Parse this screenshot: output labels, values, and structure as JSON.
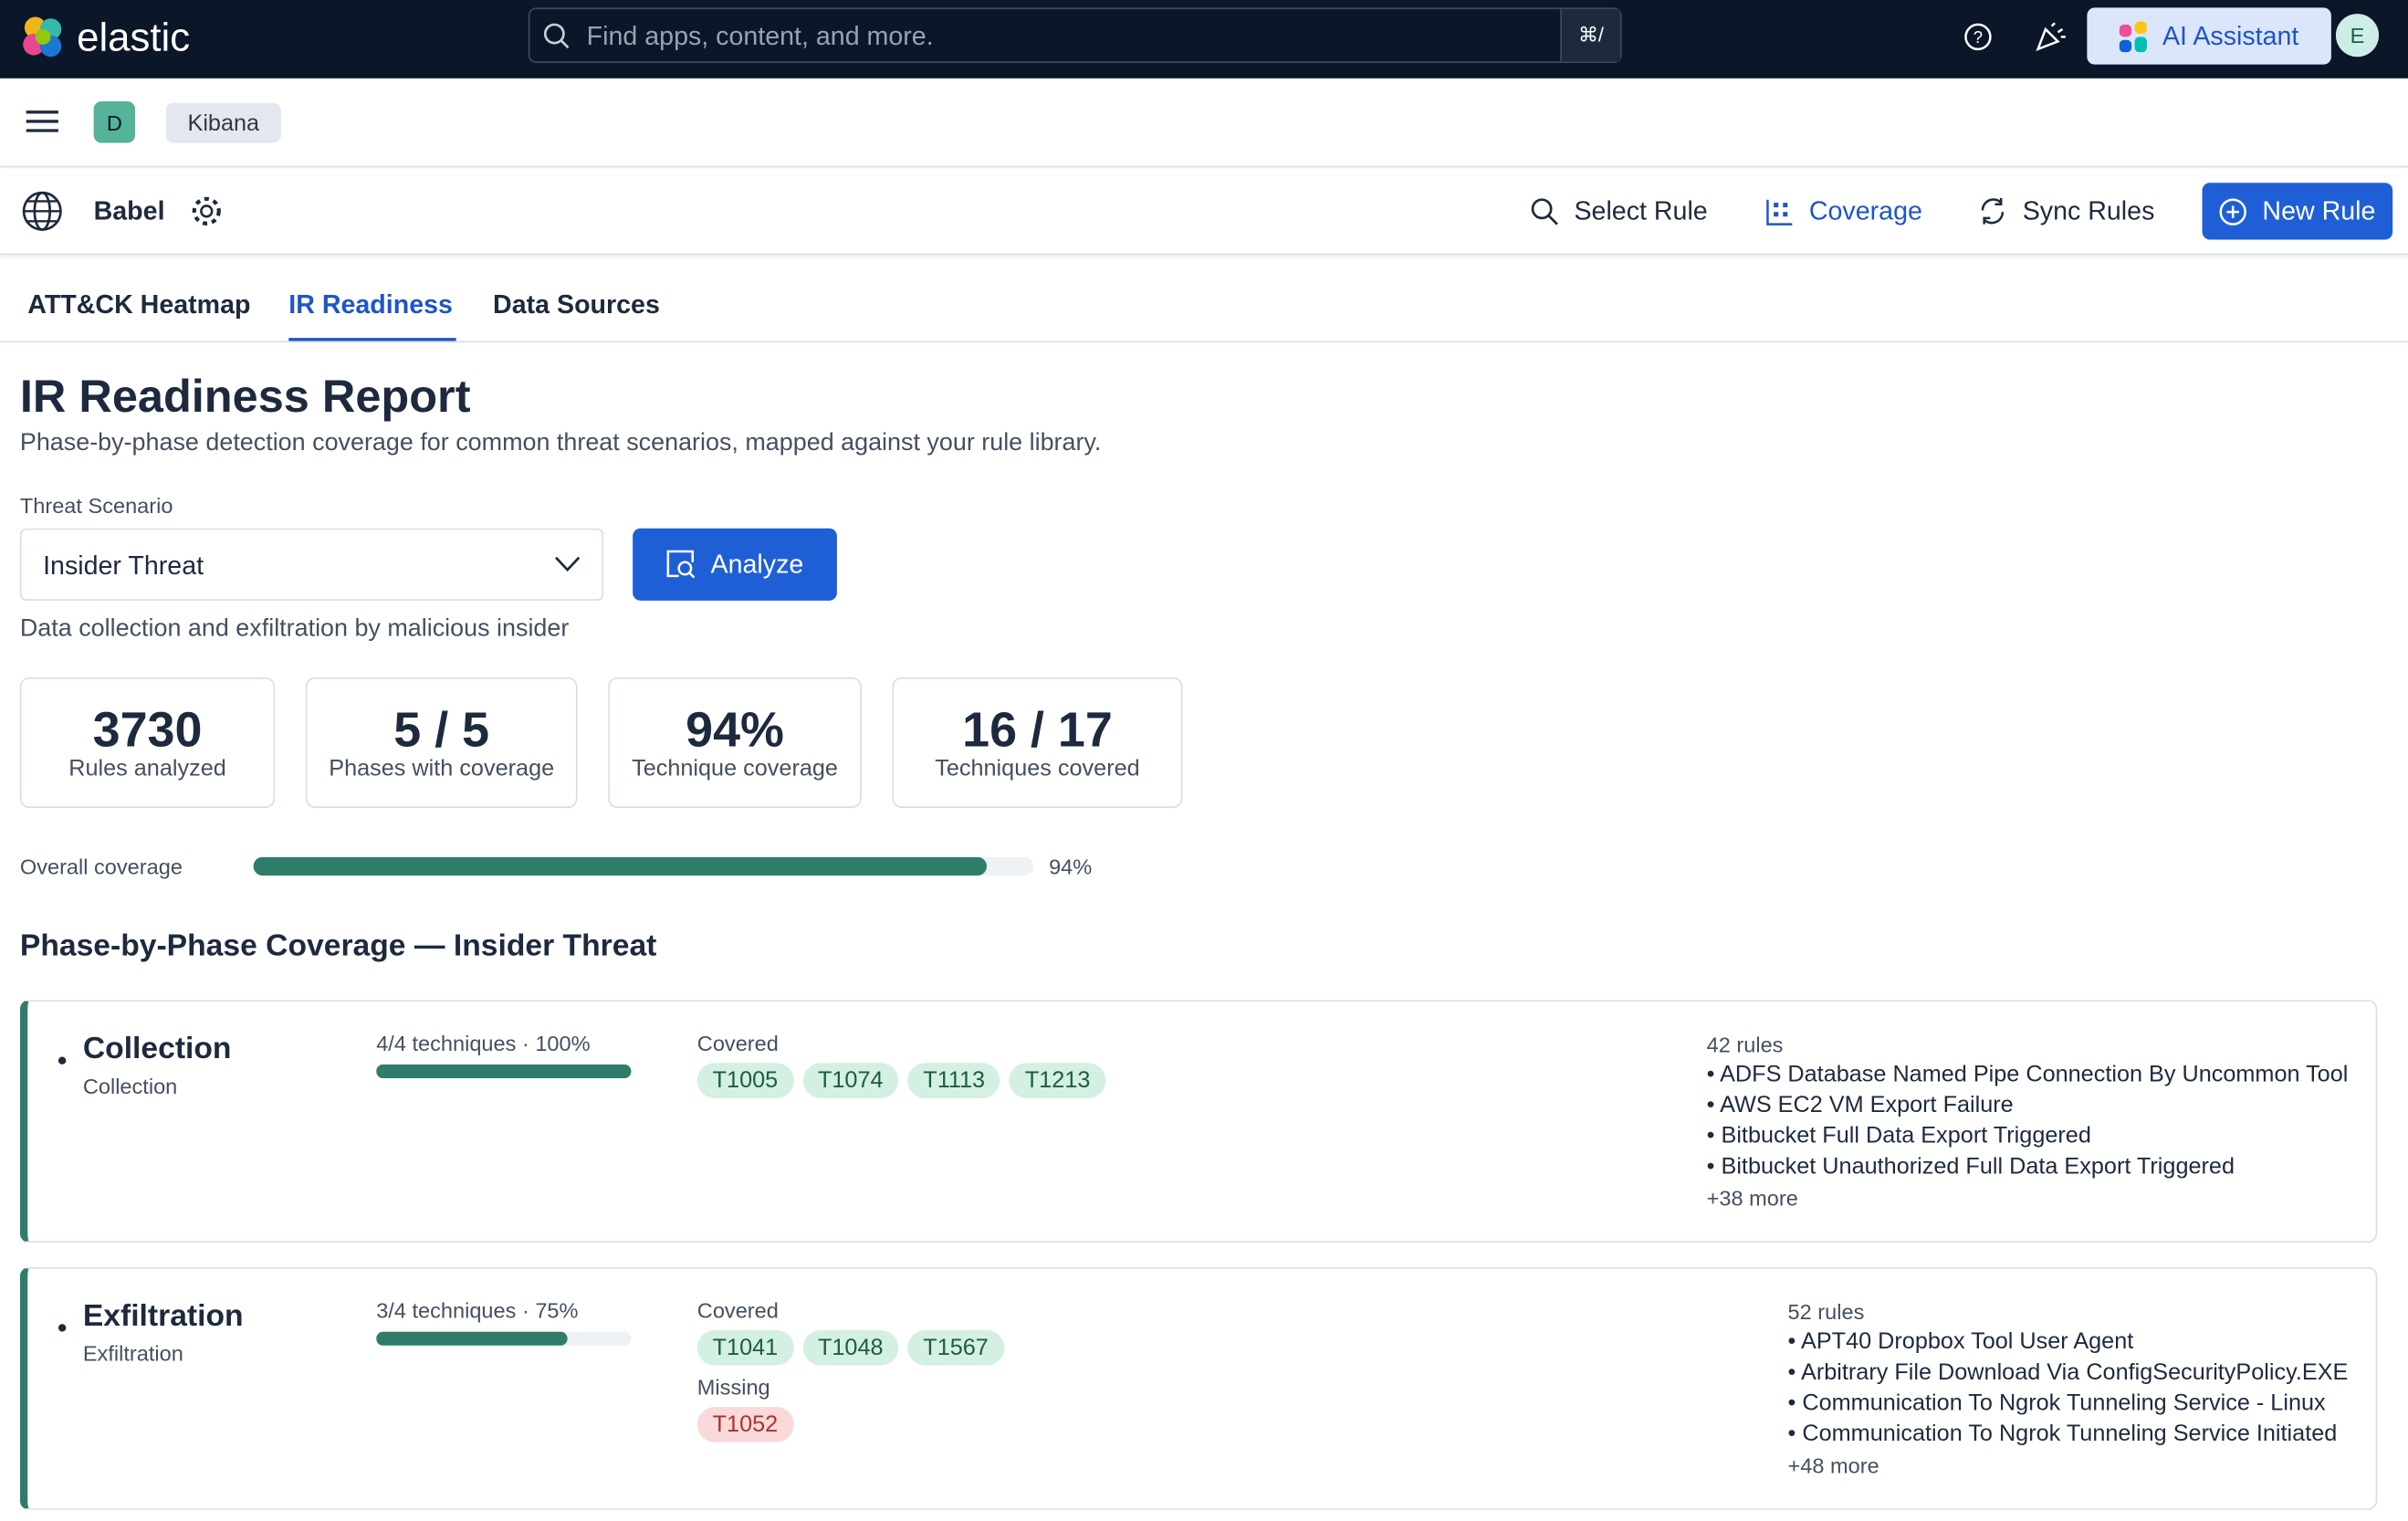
{
  "top_bar": {
    "brand": "elastic",
    "search_placeholder": "Find apps, content, and more.",
    "shortcut": "⌘/",
    "ai_button": "AI Assistant",
    "avatar": "E"
  },
  "breadcrumb": {
    "space": "D",
    "app": "Kibana"
  },
  "app_header": {
    "name": "Babel",
    "actions": [
      "Select Rule",
      "Coverage",
      "Sync Rules",
      "New Rule"
    ]
  },
  "tabs": [
    "ATT&CK Heatmap",
    "IR Readiness",
    "Data Sources"
  ],
  "report": {
    "title": "IR Readiness Report",
    "subtitle": "Phase-by-phase detection coverage for common threat scenarios, mapped against your rule library.",
    "scenario_label": "Threat Scenario",
    "scenario": "Insider Threat",
    "analyze": "Analyze",
    "description": "Data collection and exfiltration by malicious insider",
    "stats": [
      {
        "value": 3730,
        "label": "Rules analyzed"
      },
      {
        "value": "5 / 5",
        "label": "Phases with coverage"
      },
      {
        "value": "94%",
        "label": "Technique coverage"
      },
      {
        "value": "16 / 17",
        "label": "Techniques covered"
      }
    ],
    "overall_label": "Overall coverage",
    "overall_coverage": {
      "value": 94,
      "label": "94%"
    },
    "section_title": "Phase-by-Phase Coverage — Insider Threat",
    "phases": [
      {
        "name": "Collection",
        "subtitle": "Collection",
        "progress": {
          "value": 100,
          "label": "4/4 techniques · 100%"
        },
        "covered_label": "Covered",
        "covered": [
          "T1005",
          "T1074",
          "T1113",
          "T1213"
        ],
        "rules_count": "42 rules",
        "rules": [
          "ADFS Database Named Pipe Connection By Uncommon Tool",
          "AWS EC2 VM Export Failure",
          "Bitbucket Full Data Export Triggered",
          "Bitbucket Unauthorized Full Data Export Triggered"
        ],
        "more": "+38 more"
      },
      {
        "name": "Exfiltration",
        "subtitle": "Exfiltration",
        "progress": {
          "value": 75,
          "label": "3/4 techniques · 75%"
        },
        "covered_label": "Covered",
        "covered": [
          "T1041",
          "T1048",
          "T1567"
        ],
        "missing_label": "Missing",
        "missing": [
          "T1052"
        ],
        "rules_count": "52 rules",
        "rules": [
          "APT40 Dropbox Tool User Agent",
          "Arbitrary File Download Via ConfigSecurityPolicy.EXE",
          "Communication To Ngrok Tunneling Service - Linux",
          "Communication To Ngrok Tunneling Service Initiated"
        ],
        "more": "+48 more"
      }
    ]
  }
}
